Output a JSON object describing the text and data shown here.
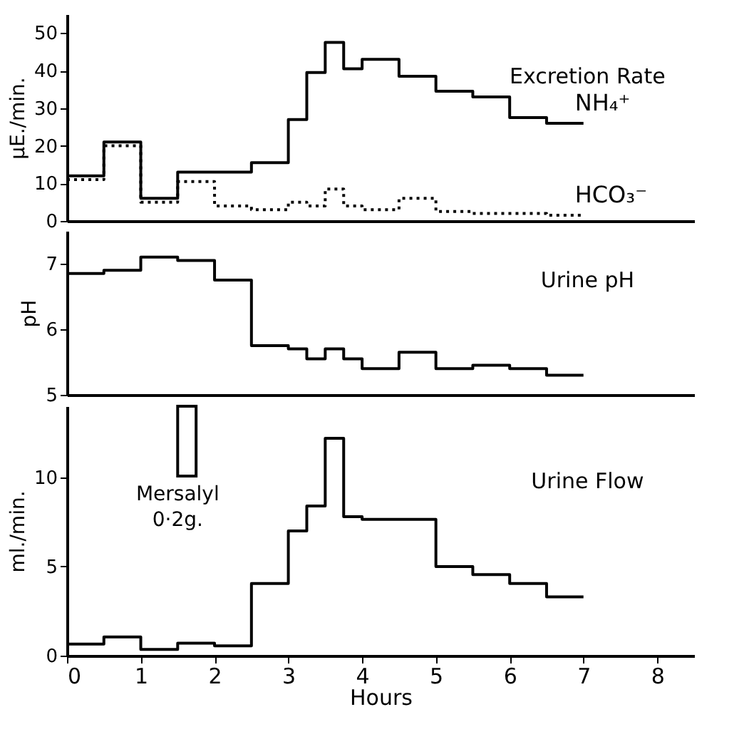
{
  "chart_data": [
    {
      "type": "step",
      "ylabel": "μE./min.",
      "annotations": [
        "Excretion Rate"
      ],
      "xlim": [
        0,
        8.5
      ],
      "ylim": [
        0,
        55
      ],
      "yticks": [
        0,
        10,
        20,
        30,
        40,
        50
      ],
      "tick_labels": "y",
      "grid": false,
      "x": [
        0,
        0.5,
        1,
        1.5,
        2,
        2.5,
        3,
        3.25,
        3.5,
        3.75,
        4,
        4.5,
        5,
        5.5,
        6,
        6.5,
        7
      ],
      "series": [
        {
          "name": "NH₄⁺",
          "color": "#000000",
          "line_style": "solid",
          "values": [
            12,
            21,
            6,
            13,
            13,
            15.5,
            27,
            39.5,
            47.5,
            40.5,
            43,
            38.5,
            34.5,
            33,
            27.5,
            26,
            26
          ]
        },
        {
          "name": "HCO₃⁻",
          "color": "#000000",
          "line_style": "dotted",
          "values": [
            11,
            20,
            5,
            10.5,
            4,
            3,
            5,
            4,
            8.5,
            4,
            3,
            6,
            2.5,
            2,
            2,
            1.5,
            1.5
          ]
        }
      ]
    },
    {
      "type": "step",
      "ylabel": "pH",
      "annotations": [
        "Urine pH"
      ],
      "xlim": [
        0,
        8.5
      ],
      "ylim": [
        5,
        7.5
      ],
      "yticks": [
        5,
        6,
        7
      ],
      "tick_labels": "y",
      "grid": false,
      "x": [
        0,
        0.5,
        1,
        1.5,
        2,
        2.5,
        3,
        3.25,
        3.5,
        3.75,
        4,
        4.5,
        5,
        5.5,
        6,
        6.5,
        7
      ],
      "series": [
        {
          "color": "#000000",
          "line_style": "solid",
          "values": [
            6.85,
            6.9,
            7.1,
            7.05,
            6.75,
            5.75,
            5.7,
            5.55,
            5.7,
            5.55,
            5.4,
            5.65,
            5.4,
            5.45,
            5.4,
            5.3,
            5.3
          ]
        }
      ]
    },
    {
      "type": "step",
      "xlabel": "Hours",
      "ylabel": "ml./min.",
      "annotations": [
        "Urine Flow"
      ],
      "xlim": [
        0,
        8.5
      ],
      "xticks": [
        0,
        1,
        2,
        3,
        4,
        5,
        6,
        7,
        8
      ],
      "ylim": [
        0,
        14
      ],
      "yticks": [
        0,
        5,
        10
      ],
      "grid": false,
      "bands": [
        {
          "axis": "x",
          "from": 1.5,
          "to": 1.75,
          "label": "Mersalyl 0·2g.",
          "color": "#ffffff"
        }
      ],
      "x": [
        0,
        0.5,
        1,
        1.5,
        2,
        2.5,
        3,
        3.25,
        3.5,
        3.75,
        4,
        5,
        5.5,
        6,
        6.5,
        7
      ],
      "series": [
        {
          "color": "#000000",
          "line_style": "solid",
          "values": [
            0.65,
            1.05,
            0.35,
            0.7,
            0.55,
            4.05,
            7.0,
            8.4,
            12.2,
            7.8,
            7.65,
            5.0,
            4.55,
            4.05,
            3.3,
            3.3
          ]
        }
      ]
    }
  ]
}
